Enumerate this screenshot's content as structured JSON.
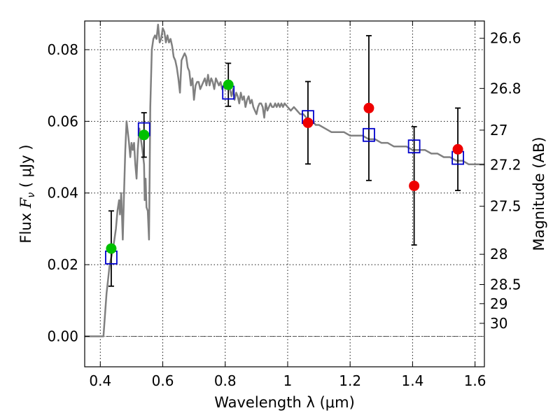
{
  "chart_data": {
    "type": "scatter",
    "xlabel": "Wavelength  λ (μm)",
    "ylabel": "Flux  Fν  ( μJy )",
    "ylabel_parts": {
      "prefix": "Flux  ",
      "symbol": "F",
      "subscript": "ν",
      "suffix": "  ( μJy )"
    },
    "y2label": "Magnitude (AB)",
    "xlim": [
      0.35,
      1.63
    ],
    "ylim": [
      -0.0085,
      0.088
    ],
    "x_ticks": [
      0.4,
      0.6,
      0.8,
      1.0,
      1.2,
      1.4,
      1.6
    ],
    "x_tick_labels": [
      "0.4",
      "0.6",
      "0.8",
      "1",
      "1.2",
      "1.4",
      "1.6"
    ],
    "y_ticks": [
      0.0,
      0.02,
      0.04,
      0.06,
      0.08
    ],
    "y_tick_labels": [
      "0.00",
      "0.02",
      "0.04",
      "0.06",
      "0.08"
    ],
    "mag_ticks": [
      26.6,
      26.8,
      27.0,
      27.2,
      27.5,
      28.0,
      28.5,
      29.0,
      30.0
    ],
    "mag_tick_labels": [
      "26.6",
      "26.8",
      "27",
      "27.2",
      "27.5",
      "28",
      "28.5",
      "29",
      "30"
    ],
    "grid": true,
    "zero_line": true,
    "colors": {
      "model": "#808080",
      "green_points": "#00c000",
      "red_points": "#ee0000",
      "model_squares": "#0000cc",
      "errorbar": "#000000"
    },
    "series": [
      {
        "kind": "line",
        "points": [
          [
            0.35,
            0
          ],
          [
            0.41,
            0
          ],
          [
            0.415,
            0.006
          ],
          [
            0.42,
            0.012
          ],
          [
            0.425,
            0.016
          ],
          [
            0.43,
            0.02
          ],
          [
            0.435,
            0.022
          ],
          [
            0.44,
            0.024
          ],
          [
            0.445,
            0.027
          ],
          [
            0.45,
            0.03
          ],
          [
            0.455,
            0.035
          ],
          [
            0.46,
            0.038
          ],
          [
            0.463,
            0.034
          ],
          [
            0.467,
            0.04
          ],
          [
            0.472,
            0.027
          ],
          [
            0.476,
            0.04
          ],
          [
            0.48,
            0.052
          ],
          [
            0.484,
            0.06
          ],
          [
            0.488,
            0.057
          ],
          [
            0.492,
            0.054
          ],
          [
            0.496,
            0.05
          ],
          [
            0.5,
            0.054
          ],
          [
            0.504,
            0.052
          ],
          [
            0.508,
            0.054
          ],
          [
            0.512,
            0.048
          ],
          [
            0.516,
            0.044
          ],
          [
            0.52,
            0.052
          ],
          [
            0.525,
            0.058
          ],
          [
            0.53,
            0.055
          ],
          [
            0.535,
            0.052
          ],
          [
            0.54,
            0.048
          ],
          [
            0.542,
            0.038
          ],
          [
            0.545,
            0.044
          ],
          [
            0.548,
            0.036
          ],
          [
            0.552,
            0.035
          ],
          [
            0.556,
            0.027
          ],
          [
            0.56,
            0.064
          ],
          [
            0.565,
            0.08
          ],
          [
            0.57,
            0.083
          ],
          [
            0.575,
            0.084
          ],
          [
            0.58,
            0.083
          ],
          [
            0.585,
            0.087
          ],
          [
            0.59,
            0.082
          ],
          [
            0.595,
            0.083
          ],
          [
            0.6,
            0.086
          ],
          [
            0.605,
            0.085
          ],
          [
            0.61,
            0.082
          ],
          [
            0.615,
            0.084
          ],
          [
            0.62,
            0.082
          ],
          [
            0.625,
            0.083
          ],
          [
            0.63,
            0.081
          ],
          [
            0.635,
            0.078
          ],
          [
            0.64,
            0.077
          ],
          [
            0.645,
            0.075
          ],
          [
            0.65,
            0.072
          ],
          [
            0.655,
            0.068
          ],
          [
            0.66,
            0.077
          ],
          [
            0.665,
            0.078
          ],
          [
            0.67,
            0.079
          ],
          [
            0.675,
            0.078
          ],
          [
            0.68,
            0.075
          ],
          [
            0.685,
            0.074
          ],
          [
            0.69,
            0.07
          ],
          [
            0.695,
            0.072
          ],
          [
            0.7,
            0.066
          ],
          [
            0.705,
            0.07
          ],
          [
            0.71,
            0.071
          ],
          [
            0.715,
            0.071
          ],
          [
            0.72,
            0.069
          ],
          [
            0.725,
            0.07
          ],
          [
            0.73,
            0.071
          ],
          [
            0.735,
            0.072
          ],
          [
            0.74,
            0.07
          ],
          [
            0.745,
            0.073
          ],
          [
            0.75,
            0.07
          ],
          [
            0.755,
            0.072
          ],
          [
            0.76,
            0.071
          ],
          [
            0.765,
            0.069
          ],
          [
            0.77,
            0.072
          ],
          [
            0.775,
            0.071
          ],
          [
            0.78,
            0.07
          ],
          [
            0.785,
            0.071
          ],
          [
            0.79,
            0.069
          ],
          [
            0.795,
            0.07
          ],
          [
            0.8,
            0.069
          ],
          [
            0.805,
            0.07
          ],
          [
            0.81,
            0.071
          ],
          [
            0.815,
            0.069
          ],
          [
            0.82,
            0.067
          ],
          [
            0.825,
            0.069
          ],
          [
            0.83,
            0.066
          ],
          [
            0.835,
            0.068
          ],
          [
            0.84,
            0.067
          ],
          [
            0.845,
            0.065
          ],
          [
            0.85,
            0.068
          ],
          [
            0.855,
            0.066
          ],
          [
            0.86,
            0.067
          ],
          [
            0.865,
            0.064
          ],
          [
            0.87,
            0.066
          ],
          [
            0.875,
            0.067
          ],
          [
            0.88,
            0.065
          ],
          [
            0.885,
            0.066
          ],
          [
            0.89,
            0.064
          ],
          [
            0.895,
            0.063
          ],
          [
            0.9,
            0.062
          ],
          [
            0.905,
            0.064
          ],
          [
            0.91,
            0.065
          ],
          [
            0.915,
            0.065
          ],
          [
            0.92,
            0.064
          ],
          [
            0.925,
            0.061
          ],
          [
            0.93,
            0.065
          ],
          [
            0.935,
            0.063
          ],
          [
            0.94,
            0.064
          ],
          [
            0.945,
            0.065
          ],
          [
            0.95,
            0.064
          ],
          [
            0.955,
            0.064
          ],
          [
            0.96,
            0.065
          ],
          [
            0.965,
            0.064
          ],
          [
            0.97,
            0.065
          ],
          [
            0.975,
            0.064
          ],
          [
            0.98,
            0.065
          ],
          [
            0.985,
            0.064
          ],
          [
            0.99,
            0.065
          ],
          [
            1.0,
            0.064
          ],
          [
            1.01,
            0.063
          ],
          [
            1.02,
            0.064
          ],
          [
            1.03,
            0.063
          ],
          [
            1.04,
            0.062
          ],
          [
            1.05,
            0.062
          ],
          [
            1.06,
            0.061
          ],
          [
            1.07,
            0.06
          ],
          [
            1.08,
            0.06
          ],
          [
            1.09,
            0.059
          ],
          [
            1.1,
            0.059
          ],
          [
            1.12,
            0.058
          ],
          [
            1.14,
            0.057
          ],
          [
            1.16,
            0.057
          ],
          [
            1.18,
            0.057
          ],
          [
            1.2,
            0.056
          ],
          [
            1.22,
            0.056
          ],
          [
            1.24,
            0.056
          ],
          [
            1.26,
            0.055
          ],
          [
            1.28,
            0.055
          ],
          [
            1.3,
            0.054
          ],
          [
            1.32,
            0.054
          ],
          [
            1.34,
            0.053
          ],
          [
            1.36,
            0.053
          ],
          [
            1.38,
            0.053
          ],
          [
            1.4,
            0.052
          ],
          [
            1.42,
            0.052
          ],
          [
            1.44,
            0.052
          ],
          [
            1.46,
            0.051
          ],
          [
            1.48,
            0.051
          ],
          [
            1.5,
            0.05
          ],
          [
            1.52,
            0.05
          ],
          [
            1.54,
            0.049
          ],
          [
            1.56,
            0.049
          ],
          [
            1.58,
            0.048
          ],
          [
            1.6,
            0.048
          ],
          [
            1.63,
            0.048
          ]
        ]
      },
      {
        "kind": "errorbar",
        "points": [
          {
            "x": 0.435,
            "y": 0.0245,
            "yerr": 0.0105
          },
          {
            "x": 0.54,
            "y": 0.0562,
            "yerr": 0.0062
          },
          {
            "x": 0.81,
            "y": 0.0702,
            "yerr": 0.006
          },
          {
            "x": 1.065,
            "y": 0.0596,
            "yerr": 0.0115
          },
          {
            "x": 1.26,
            "y": 0.0637,
            "yerr": 0.0202
          },
          {
            "x": 1.405,
            "y": 0.042,
            "yerr": 0.0165
          },
          {
            "x": 1.545,
            "y": 0.0522,
            "yerr": 0.0115
          }
        ]
      },
      {
        "kind": "green_points",
        "points": [
          {
            "x": 0.435,
            "y": 0.0245
          },
          {
            "x": 0.54,
            "y": 0.0562
          },
          {
            "x": 0.81,
            "y": 0.0702
          }
        ]
      },
      {
        "kind": "red_points",
        "points": [
          {
            "x": 1.065,
            "y": 0.0596
          },
          {
            "x": 1.26,
            "y": 0.0637
          },
          {
            "x": 1.405,
            "y": 0.042
          },
          {
            "x": 1.545,
            "y": 0.0522
          }
        ]
      },
      {
        "kind": "model_squares",
        "points": [
          {
            "x": 0.435,
            "y": 0.022
          },
          {
            "x": 0.54,
            "y": 0.0578
          },
          {
            "x": 0.81,
            "y": 0.068
          },
          {
            "x": 1.065,
            "y": 0.0612
          },
          {
            "x": 1.26,
            "y": 0.0562
          },
          {
            "x": 1.405,
            "y": 0.053
          },
          {
            "x": 1.545,
            "y": 0.0498
          }
        ]
      }
    ]
  }
}
